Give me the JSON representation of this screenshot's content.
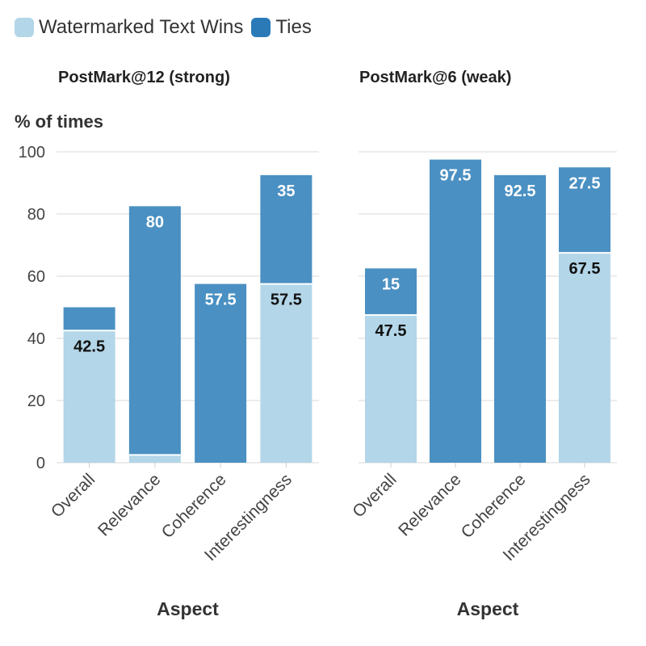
{
  "legend": {
    "wins_label": "Watermarked Text Wins",
    "ties_label": "Ties"
  },
  "colors": {
    "wins": "#b3d6e8",
    "ties": "#4a90c2",
    "legend_ties": "#2a7ab8",
    "grid": "#e6e6e6",
    "axis_text": "#444444"
  },
  "chart_data": [
    {
      "type": "bar",
      "stacked": true,
      "title": "PostMark@12 (strong)",
      "ylabel": "% of times",
      "xlabel": "Aspect",
      "ylim": [
        0,
        100
      ],
      "yticks": [
        0,
        20,
        40,
        60,
        80,
        100
      ],
      "categories": [
        "Overall",
        "Relevance",
        "Coherence",
        "Interestingness"
      ],
      "series": [
        {
          "name": "Watermarked Text Wins",
          "values": [
            42.5,
            2.5,
            0,
            57.5
          ],
          "labels": [
            "42.5",
            "",
            "",
            "57.5"
          ]
        },
        {
          "name": "Ties",
          "values": [
            7.5,
            80,
            57.5,
            35
          ],
          "labels": [
            "",
            "80",
            "57.5",
            "35"
          ]
        }
      ]
    },
    {
      "type": "bar",
      "stacked": true,
      "title": "PostMark@6 (weak)",
      "ylabel": "",
      "xlabel": "Aspect",
      "ylim": [
        0,
        100
      ],
      "yticks": [
        0,
        20,
        40,
        60,
        80,
        100
      ],
      "categories": [
        "Overall",
        "Relevance",
        "Coherence",
        "Interestingness"
      ],
      "series": [
        {
          "name": "Watermarked Text Wins",
          "values": [
            47.5,
            0,
            0,
            67.5
          ],
          "labels": [
            "47.5",
            "",
            "",
            "67.5"
          ]
        },
        {
          "name": "Ties",
          "values": [
            15,
            97.5,
            92.5,
            27.5
          ],
          "labels": [
            "15",
            "97.5",
            "92.5",
            "27.5"
          ]
        }
      ]
    }
  ]
}
